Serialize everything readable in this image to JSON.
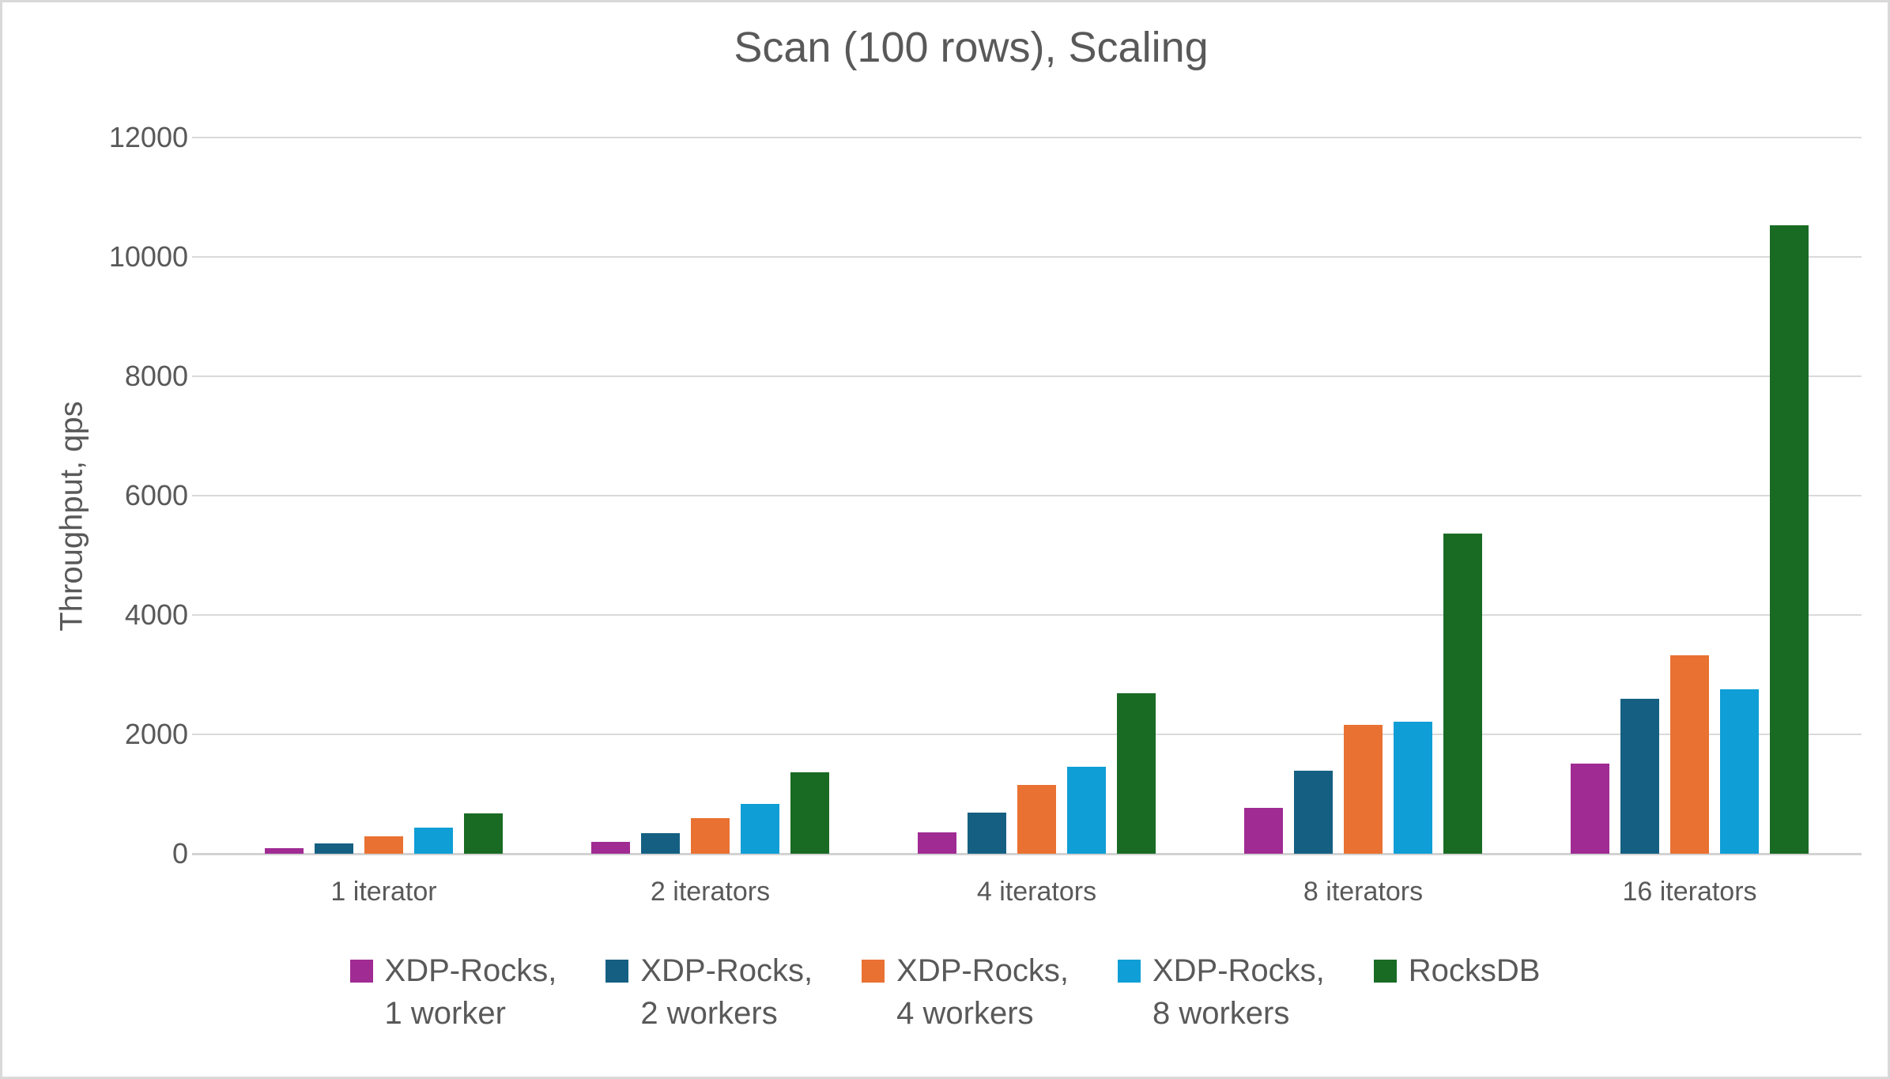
{
  "chart_data": {
    "type": "bar",
    "title": "Scan (100 rows), Scaling",
    "xlabel": "",
    "ylabel": "Throughput, qps",
    "ylim": [
      0,
      12000
    ],
    "ytick_step": 2000,
    "grid": true,
    "legend_position": "bottom",
    "categories": [
      "1 iterator",
      "2 iterators",
      "4 iterators",
      "8 iterators",
      "16 iterators"
    ],
    "series": [
      {
        "name": "XDP-Rocks, 1 worker",
        "legend_lines": [
          "XDP-Rocks,",
          "1 worker"
        ],
        "color": "#A02B93",
        "values": [
          90,
          200,
          360,
          770,
          1510
        ]
      },
      {
        "name": "XDP-Rocks, 2 workers",
        "legend_lines": [
          "XDP-Rocks,",
          "2 workers"
        ],
        "color": "#156082",
        "values": [
          175,
          350,
          690,
          1390,
          2600
        ]
      },
      {
        "name": "XDP-Rocks, 4 workers",
        "legend_lines": [
          "XDP-Rocks,",
          "4 workers"
        ],
        "color": "#E97132",
        "values": [
          290,
          600,
          1150,
          2155,
          3330
        ]
      },
      {
        "name": "XDP-Rocks, 8 workers",
        "legend_lines": [
          "XDP-Rocks,",
          "8 workers"
        ],
        "color": "#0F9ED5",
        "values": [
          440,
          840,
          1460,
          2210,
          2760
        ]
      },
      {
        "name": "RocksDB",
        "legend_lines": [
          "RocksDB"
        ],
        "color": "#196B24",
        "values": [
          670,
          1370,
          2690,
          5370,
          10530
        ]
      }
    ]
  },
  "colors": {
    "text": "#595959",
    "gridline": "#D9D9D9",
    "axis_line": "#D2D2D2",
    "background": "#FFFFFF",
    "border": "#D9D9D9"
  }
}
